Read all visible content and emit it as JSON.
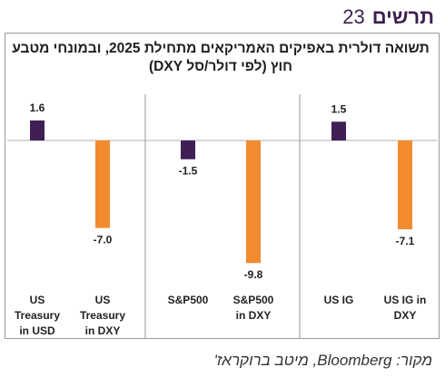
{
  "heading": {
    "word": "תרשים",
    "number": "23"
  },
  "chart_data": {
    "type": "bar",
    "title": "תשואה דולרית באפיקים האמריקאים מתחילת 2025, ובמונחי מטבע חוץ (לפי דולר/סל DXY)",
    "xlabel": "",
    "ylabel": "",
    "groups": [
      {
        "categories": [
          "US Treasury in USD",
          "US Treasury in DXY"
        ],
        "values": [
          1.6,
          -7.0
        ],
        "labels": [
          "1.6",
          "-7.0"
        ]
      },
      {
        "categories": [
          "S&P500",
          "S&P500 in DXY"
        ],
        "values": [
          -1.5,
          -9.8
        ],
        "labels": [
          "-1.5",
          "-9.8"
        ]
      },
      {
        "categories": [
          "US IG",
          "US IG in DXY"
        ],
        "values": [
          1.5,
          -7.1
        ],
        "labels": [
          "1.5",
          "-7.1"
        ]
      }
    ],
    "category_lines": [
      [
        [
          "US",
          "Treasury",
          "in USD"
        ],
        [
          "US",
          "Treasury",
          "in DXY"
        ]
      ],
      [
        [
          "S&P500"
        ],
        [
          "S&P500",
          "in DXY"
        ]
      ],
      [
        [
          "US IG"
        ],
        [
          "US IG in",
          "DXY"
        ]
      ]
    ],
    "colors": {
      "usd": "#3f1f55",
      "dxy": "#f28b30"
    },
    "ylim": [
      -10.5,
      2.5
    ],
    "grid": false,
    "legend": "none"
  },
  "source": "מקור: Bloomberg, מיטב ברוקראז'"
}
